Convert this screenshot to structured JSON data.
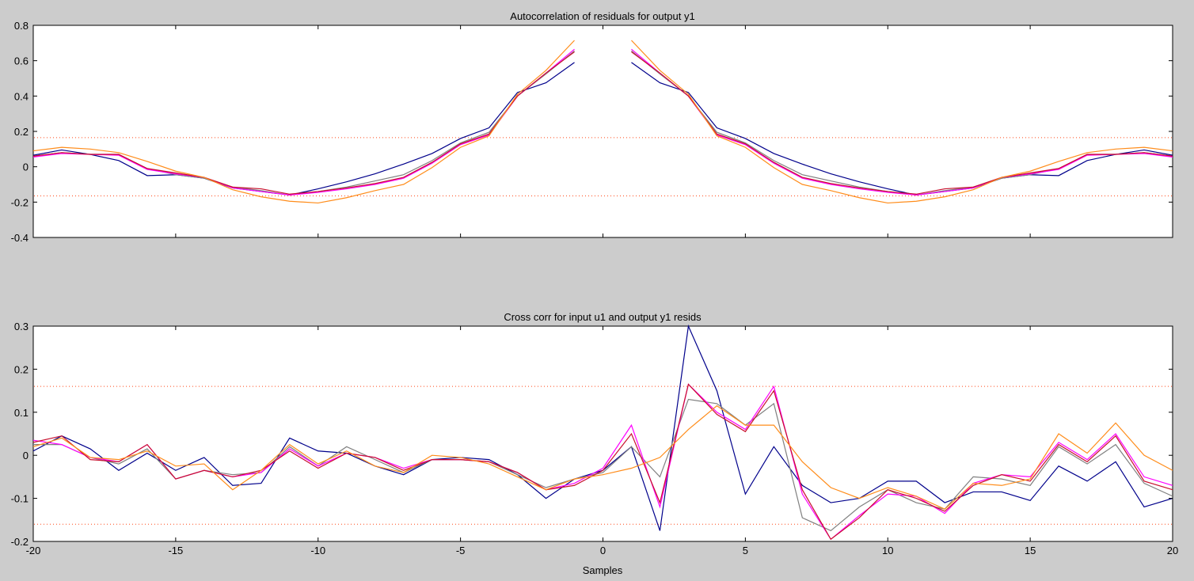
{
  "colors": {
    "figure_bg": "#cccccc",
    "axes_bg": "#ffffff",
    "axes_edge": "#000000",
    "conf_line": "#ff4a1a",
    "series": [
      "#00008b",
      "#808080",
      "#ff00ff",
      "#c8102e",
      "#ff8c1a"
    ]
  },
  "xlabel": "Samples",
  "chart_data": [
    {
      "type": "line",
      "title": "Autocorrelation of residuals for output y1",
      "xlabel": "",
      "ylabel": "",
      "xlim": [
        -20,
        20
      ],
      "ylim": [
        -0.4,
        0.8
      ],
      "yticks": [
        "0.8",
        "0.6",
        "0.4",
        "0.2",
        "0",
        "-0.2",
        "-0.4"
      ],
      "xticks": [],
      "grid": false,
      "confidence": [
        0.165,
        -0.165
      ],
      "gap": [
        -1,
        1
      ],
      "x_left": [
        -20,
        -19,
        -18,
        -17,
        -16,
        -15,
        -14,
        -13,
        -12,
        -11,
        -10,
        -9,
        -8,
        -7,
        -6,
        -5,
        -4,
        -3,
        -2,
        -1
      ],
      "series": [
        {
          "left": [
            0.065,
            0.095,
            0.07,
            0.035,
            -0.05,
            -0.045,
            -0.065,
            -0.12,
            -0.14,
            -0.16,
            -0.125,
            -0.085,
            -0.04,
            0.015,
            0.075,
            0.16,
            0.22,
            0.42,
            0.475,
            0.59
          ]
        },
        {
          "left": [
            0.06,
            0.08,
            0.07,
            0.07,
            -0.01,
            -0.045,
            -0.065,
            -0.115,
            -0.135,
            -0.16,
            -0.14,
            -0.115,
            -0.08,
            -0.045,
            0.035,
            0.135,
            0.195,
            0.4,
            0.525,
            0.655
          ]
        },
        {
          "left": [
            0.055,
            0.075,
            0.07,
            0.065,
            -0.015,
            -0.04,
            -0.06,
            -0.12,
            -0.14,
            -0.16,
            -0.145,
            -0.125,
            -0.1,
            -0.065,
            0.02,
            0.125,
            0.18,
            0.4,
            0.53,
            0.665
          ]
        },
        {
          "left": [
            0.06,
            0.08,
            0.07,
            0.07,
            -0.01,
            -0.035,
            -0.06,
            -0.115,
            -0.125,
            -0.155,
            -0.14,
            -0.12,
            -0.095,
            -0.06,
            0.025,
            0.13,
            0.185,
            0.4,
            0.53,
            0.65
          ]
        },
        {
          "left": [
            0.09,
            0.11,
            0.1,
            0.08,
            0.03,
            -0.025,
            -0.06,
            -0.13,
            -0.17,
            -0.195,
            -0.205,
            -0.175,
            -0.135,
            -0.1,
            -0.005,
            0.11,
            0.175,
            0.41,
            0.545,
            0.715
          ]
        }
      ],
      "mirror": true
    },
    {
      "type": "line",
      "title": "Cross corr for input u1 and output y1 resids",
      "xlabel": "Samples",
      "ylabel": "",
      "xlim": [
        -20,
        20
      ],
      "ylim": [
        -0.2,
        0.3
      ],
      "yticks": [
        "0.3",
        "0.2",
        "0.1",
        "0",
        "-0.1",
        "-0.2"
      ],
      "xticks": [
        "-20",
        "-15",
        "-10",
        "-5",
        "0",
        "5",
        "10",
        "15",
        "20"
      ],
      "grid": false,
      "confidence": [
        0.16,
        -0.16
      ],
      "x": [
        -20,
        -19,
        -18,
        -17,
        -16,
        -15,
        -14,
        -13,
        -12,
        -11,
        -10,
        -9,
        -8,
        -7,
        -6,
        -5,
        -4,
        -3,
        -2,
        -1,
        0,
        1,
        2,
        3,
        4,
        5,
        6,
        7,
        8,
        9,
        10,
        11,
        12,
        13,
        14,
        15,
        16,
        17,
        18,
        19,
        20
      ],
      "series": [
        {
          "values": [
            0.01,
            0.045,
            0.015,
            -0.035,
            0.005,
            -0.035,
            -0.005,
            -0.07,
            -0.065,
            0.04,
            0.01,
            0.005,
            -0.025,
            -0.045,
            -0.01,
            -0.005,
            -0.01,
            -0.045,
            -0.1,
            -0.055,
            -0.035,
            0.02,
            -0.175,
            0.3,
            0.15,
            -0.09,
            0.02,
            -0.07,
            -0.11,
            -0.1,
            -0.06,
            -0.06,
            -0.11,
            -0.085,
            -0.085,
            -0.105,
            -0.025,
            -0.06,
            -0.015,
            -0.12,
            -0.1
          ]
        },
        {
          "values": [
            0.025,
            0.025,
            -0.005,
            -0.02,
            0.015,
            -0.055,
            -0.035,
            -0.045,
            -0.04,
            0.02,
            -0.025,
            0.02,
            -0.01,
            -0.04,
            -0.01,
            -0.01,
            -0.015,
            -0.045,
            -0.075,
            -0.055,
            -0.04,
            0.02,
            -0.05,
            0.13,
            0.12,
            0.07,
            0.12,
            -0.145,
            -0.175,
            -0.12,
            -0.08,
            -0.11,
            -0.125,
            -0.05,
            -0.055,
            -0.07,
            0.02,
            -0.02,
            0.025,
            -0.065,
            -0.095
          ]
        },
        {
          "values": [
            0.035,
            0.025,
            -0.005,
            -0.015,
            0.025,
            -0.055,
            -0.035,
            -0.05,
            -0.04,
            0.015,
            -0.025,
            0.005,
            -0.005,
            -0.03,
            -0.01,
            -0.01,
            -0.015,
            -0.04,
            -0.08,
            -0.065,
            -0.03,
            0.07,
            -0.12,
            0.165,
            0.1,
            0.06,
            0.16,
            -0.09,
            -0.195,
            -0.14,
            -0.09,
            -0.095,
            -0.135,
            -0.065,
            -0.045,
            -0.05,
            0.03,
            -0.01,
            0.05,
            -0.05,
            -0.07
          ]
        },
        {
          "values": [
            0.03,
            0.045,
            -0.01,
            -0.015,
            0.025,
            -0.055,
            -0.035,
            -0.05,
            -0.035,
            0.01,
            -0.03,
            0.005,
            -0.005,
            -0.035,
            -0.01,
            -0.01,
            -0.015,
            -0.04,
            -0.08,
            -0.07,
            -0.035,
            0.05,
            -0.11,
            0.165,
            0.095,
            0.055,
            0.15,
            -0.08,
            -0.195,
            -0.145,
            -0.08,
            -0.1,
            -0.13,
            -0.07,
            -0.045,
            -0.06,
            0.025,
            -0.015,
            0.045,
            -0.06,
            -0.08
          ]
        },
        {
          "values": [
            0.02,
            0.04,
            -0.005,
            -0.01,
            0.01,
            -0.025,
            -0.02,
            -0.08,
            -0.035,
            0.025,
            -0.02,
            0.01,
            -0.025,
            -0.04,
            0.0,
            -0.005,
            -0.02,
            -0.05,
            -0.08,
            -0.055,
            -0.045,
            -0.03,
            -0.005,
            0.06,
            0.115,
            0.07,
            0.07,
            -0.015,
            -0.075,
            -0.1,
            -0.075,
            -0.095,
            -0.125,
            -0.065,
            -0.07,
            -0.055,
            0.05,
            0.005,
            0.075,
            0.0,
            -0.035
          ]
        }
      ]
    }
  ]
}
